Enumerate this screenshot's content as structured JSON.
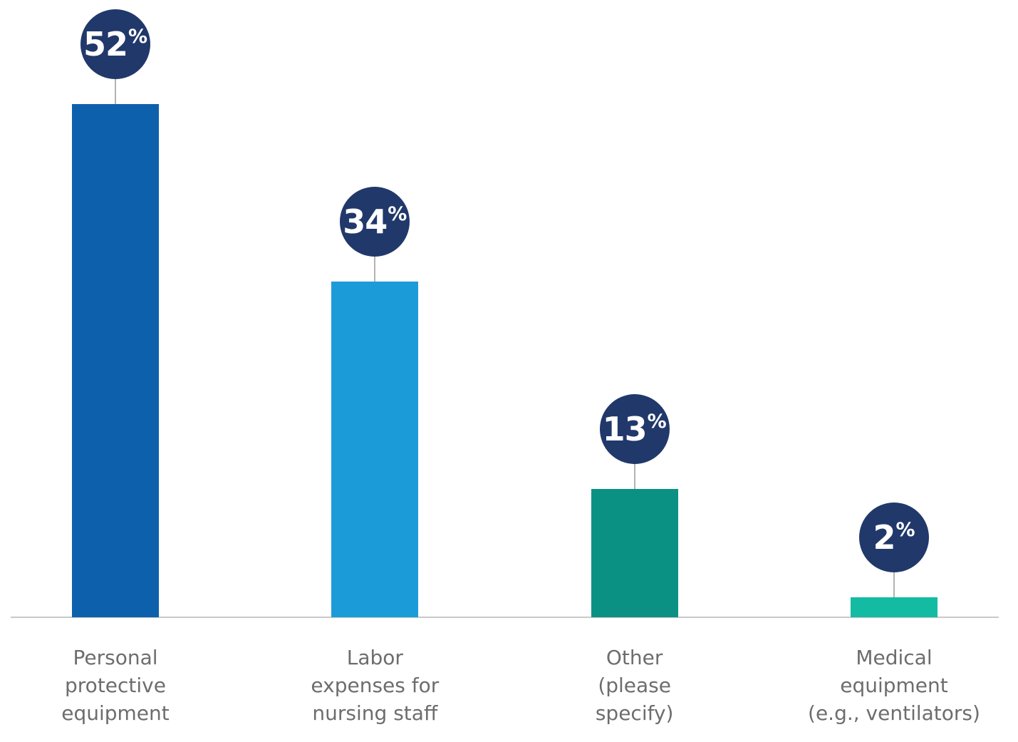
{
  "chart_data": {
    "type": "bar",
    "categories": [
      "Personal\nprotective\nequipment",
      "Labor\nexpenses for\nnursing staff",
      "Other\n(please\nspecify)",
      "Medical\nequipment\n(e.g., ventilators)"
    ],
    "values": [
      52,
      34,
      13,
      2
    ],
    "value_suffix": "%",
    "title": "",
    "xlabel": "",
    "ylabel": "",
    "ylim": [
      0,
      52
    ],
    "grid": false,
    "legend": false,
    "bar_colors": [
      "#0d61ac",
      "#1b9cd9",
      "#0a9184",
      "#13bba3"
    ],
    "badge_color": "#21386b",
    "badge_text_color": "#ffffff",
    "connector_color": "#b3b3b3",
    "axis_line_color": "#c9c9c9",
    "label_color": "#6d6d6d",
    "background_color": "#ffffff"
  }
}
